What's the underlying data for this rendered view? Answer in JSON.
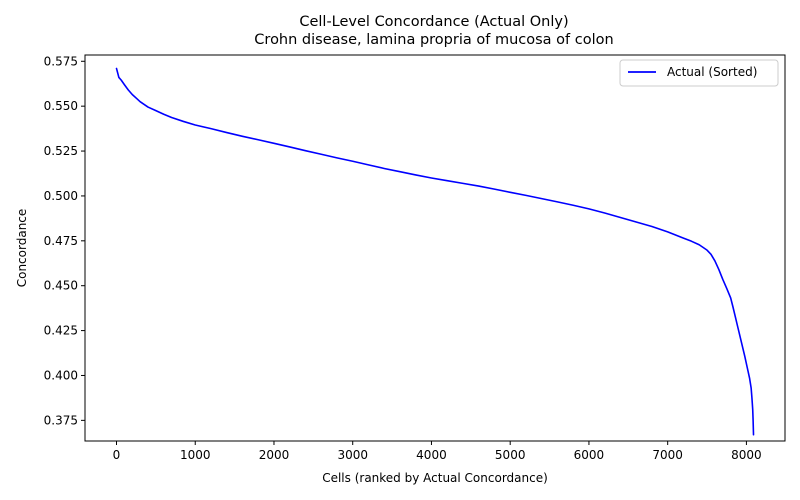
{
  "chart_data": {
    "type": "line",
    "title": "Cell-Level Concordance (Actual Only)",
    "subtitle": "Crohn disease, lamina propria of mucosa of colon",
    "xlabel": "Cells (ranked by Actual Concordance)",
    "ylabel": "Concordance",
    "xlim": [
      -400,
      8490
    ],
    "ylim": [
      0.3635,
      0.5785
    ],
    "xticks": [
      0,
      1000,
      2000,
      3000,
      4000,
      5000,
      6000,
      7000,
      8000
    ],
    "xtick_labels": [
      "0",
      "1000",
      "2000",
      "3000",
      "4000",
      "5000",
      "6000",
      "7000",
      "8000"
    ],
    "yticks": [
      0.375,
      0.4,
      0.425,
      0.45,
      0.475,
      0.5,
      0.525,
      0.55,
      0.575
    ],
    "ytick_labels": [
      "0.375",
      "0.400",
      "0.425",
      "0.450",
      "0.475",
      "0.500",
      "0.525",
      "0.550",
      "0.575"
    ],
    "grid": false,
    "legend_position": "top-right",
    "series": [
      {
        "name": "Actual (Sorted)",
        "color": "#0000ff",
        "x": [
          0,
          30,
          60,
          100,
          150,
          200,
          250,
          300,
          400,
          500,
          600,
          700,
          850,
          1000,
          1200,
          1400,
          1600,
          1800,
          2000,
          2200,
          2400,
          2600,
          2800,
          3000,
          3200,
          3400,
          3600,
          3800,
          4000,
          4200,
          4400,
          4600,
          4800,
          5000,
          5200,
          5400,
          5600,
          5800,
          6000,
          6200,
          6400,
          6600,
          6800,
          7000,
          7200,
          7300,
          7400,
          7500,
          7550,
          7600,
          7650,
          7700,
          7750,
          7800,
          7830,
          7860,
          7890,
          7920,
          7950,
          7980,
          8010,
          8040,
          8060,
          8070,
          8080,
          8085,
          8090
        ],
        "y": [
          0.571,
          0.566,
          0.5645,
          0.562,
          0.559,
          0.5565,
          0.5545,
          0.5525,
          0.5495,
          0.5475,
          0.5455,
          0.5437,
          0.5415,
          0.5395,
          0.5375,
          0.5353,
          0.5332,
          0.5313,
          0.5293,
          0.5273,
          0.5252,
          0.5232,
          0.5212,
          0.5193,
          0.5173,
          0.5153,
          0.5135,
          0.5117,
          0.51,
          0.5085,
          0.507,
          0.5055,
          0.5038,
          0.502,
          0.5003,
          0.4985,
          0.4967,
          0.4948,
          0.4928,
          0.4905,
          0.488,
          0.4855,
          0.483,
          0.48,
          0.4765,
          0.4748,
          0.4728,
          0.4698,
          0.4675,
          0.4638,
          0.459,
          0.4535,
          0.4485,
          0.4432,
          0.438,
          0.4325,
          0.427,
          0.4215,
          0.416,
          0.4105,
          0.4045,
          0.3985,
          0.393,
          0.3875,
          0.381,
          0.375,
          0.367
        ]
      }
    ]
  }
}
